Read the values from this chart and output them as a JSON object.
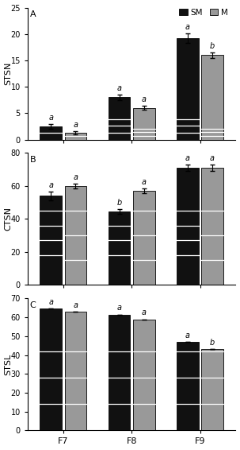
{
  "panels": [
    {
      "label": "A",
      "ylabel": "STSN",
      "ylim": [
        0,
        25
      ],
      "yticks": [
        0,
        5,
        10,
        15,
        20,
        25
      ],
      "groups": [
        "F7",
        "F8",
        "F9"
      ],
      "SM_values": [
        2.5,
        8.0,
        19.2
      ],
      "SM_errors": [
        0.4,
        0.5,
        0.9
      ],
      "M_values": [
        1.3,
        6.0,
        16.0
      ],
      "M_errors": [
        0.3,
        0.4,
        0.5
      ],
      "SM_labels": [
        "a",
        "a",
        "a"
      ],
      "M_labels": [
        "a",
        "a",
        "b"
      ],
      "SM_hlines": [
        1.3,
        2.6,
        3.9
      ],
      "M_hlines": [
        0.7,
        1.4,
        2.1
      ]
    },
    {
      "label": "B",
      "ylabel": "CTSN",
      "ylim": [
        0,
        80
      ],
      "yticks": [
        0,
        20,
        40,
        60,
        80
      ],
      "groups": [
        "F7",
        "F8",
        "F9"
      ],
      "SM_values": [
        54.0,
        44.5,
        71.0
      ],
      "SM_errors": [
        2.5,
        1.5,
        2.0
      ],
      "M_values": [
        60.0,
        57.0,
        71.0
      ],
      "M_errors": [
        1.5,
        1.5,
        2.0
      ],
      "SM_labels": [
        "a",
        "b",
        "a"
      ],
      "M_labels": [
        "a",
        "a",
        "a"
      ],
      "SM_hlines": [
        18,
        27,
        36,
        45
      ],
      "M_hlines": [
        15,
        30,
        45
      ]
    },
    {
      "label": "C",
      "ylabel": "STSL",
      "ylim": [
        0,
        70
      ],
      "yticks": [
        0,
        10,
        20,
        30,
        40,
        50,
        60,
        70
      ],
      "groups": [
        "F7",
        "F8",
        "F9"
      ],
      "SM_values": [
        64.5,
        61.5,
        47.0
      ],
      "SM_errors": [
        0,
        0,
        0
      ],
      "M_values": [
        63.0,
        59.0,
        43.0
      ],
      "M_errors": [
        0,
        0,
        0
      ],
      "SM_labels": [
        "a",
        "a",
        "a"
      ],
      "M_labels": [
        "a",
        "a",
        "b"
      ],
      "SM_hlines": [
        14,
        28,
        42
      ],
      "M_hlines": [
        14,
        28,
        42
      ]
    }
  ],
  "SM_color": "#111111",
  "M_color": "#999999",
  "bar_width": 0.32,
  "group_positions": [
    0,
    1,
    2
  ],
  "figsize": [
    3.03,
    5.66
  ],
  "dpi": 100,
  "legend_labels": [
    "SM",
    "M"
  ],
  "xlabel_fontsize": 8,
  "ylabel_fontsize": 8,
  "tick_fontsize": 7,
  "label_fontsize": 7.5,
  "annot_fontsize": 7
}
